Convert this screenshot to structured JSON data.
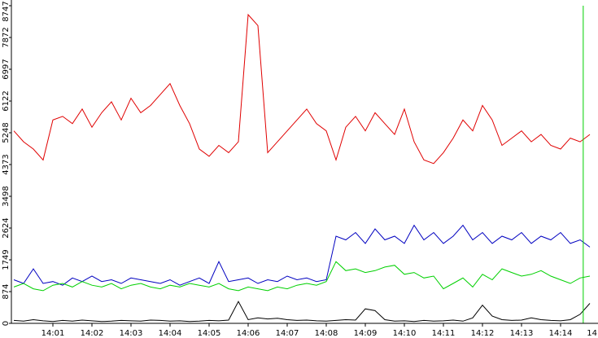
{
  "chart_data": {
    "type": "line",
    "x": [
      0,
      0.25,
      0.5,
      0.75,
      1,
      1.25,
      1.5,
      1.75,
      2,
      2.25,
      2.5,
      2.75,
      3,
      3.25,
      3.5,
      3.75,
      4,
      4.25,
      4.5,
      4.75,
      5,
      5.25,
      5.5,
      5.75,
      6,
      6.25,
      6.5,
      6.75,
      7,
      7.25,
      7.5,
      7.75,
      8,
      8.25,
      8.5,
      8.75,
      9,
      9.25,
      9.5,
      9.75,
      10,
      10.25,
      10.5,
      10.75,
      11,
      11.25,
      11.5,
      11.75,
      12,
      12.25,
      12.5,
      12.75,
      13,
      13.25,
      13.5,
      13.75,
      14,
      14.25,
      14.5,
      14.75
    ],
    "series": [
      {
        "color": "#e00000",
        "values": [
          5300,
          5000,
          4800,
          4500,
          5600,
          5700,
          5500,
          5900,
          5400,
          5800,
          6100,
          5600,
          6200,
          5800,
          6000,
          6300,
          6600,
          6000,
          5500,
          4800,
          4600,
          4900,
          4700,
          5000,
          8500,
          8200,
          4700,
          5000,
          5300,
          5600,
          5900,
          5500,
          5300,
          4500,
          5400,
          5700,
          5300,
          5800,
          5500,
          5200,
          5900,
          5000,
          4500,
          4400,
          4700,
          5100,
          5600,
          5300,
          6000,
          5600,
          4900,
          5100,
          5300,
          5000,
          5200,
          4900,
          4800,
          5100,
          5000,
          5200
        ]
      },
      {
        "color": "#0000c0",
        "values": [
          1200,
          1100,
          1500,
          1100,
          1150,
          1050,
          1250,
          1150,
          1300,
          1150,
          1200,
          1100,
          1250,
          1200,
          1150,
          1100,
          1200,
          1050,
          1150,
          1250,
          1100,
          1700,
          1150,
          1200,
          1250,
          1100,
          1200,
          1150,
          1300,
          1200,
          1250,
          1150,
          1200,
          2400,
          2300,
          2500,
          2200,
          2600,
          2300,
          2400,
          2200,
          2700,
          2300,
          2500,
          2200,
          2400,
          2700,
          2300,
          2500,
          2200,
          2400,
          2300,
          2500,
          2200,
          2400,
          2300,
          2500,
          2200,
          2300,
          2100
        ]
      },
      {
        "color": "#00d000",
        "values": [
          1000,
          1100,
          950,
          900,
          1050,
          1100,
          1000,
          1150,
          1050,
          1000,
          1100,
          950,
          1050,
          1100,
          1000,
          950,
          1050,
          1000,
          1100,
          1050,
          1000,
          1100,
          950,
          900,
          1000,
          950,
          900,
          1000,
          950,
          1050,
          1100,
          1050,
          1150,
          1700,
          1450,
          1500,
          1400,
          1450,
          1550,
          1600,
          1350,
          1400,
          1250,
          1300,
          950,
          1100,
          1250,
          1000,
          1350,
          1200,
          1500,
          1400,
          1300,
          1350,
          1450,
          1300,
          1200,
          1100,
          1250,
          1300
        ]
      },
      {
        "color": "#000000",
        "values": [
          80,
          60,
          100,
          70,
          50,
          80,
          60,
          90,
          70,
          50,
          60,
          80,
          70,
          60,
          90,
          80,
          60,
          70,
          50,
          60,
          80,
          70,
          90,
          600,
          100,
          150,
          120,
          140,
          100,
          80,
          90,
          70,
          60,
          80,
          100,
          90,
          400,
          350,
          100,
          60,
          70,
          50,
          80,
          60,
          70,
          90,
          60,
          150,
          500,
          200,
          100,
          80,
          90,
          150,
          100,
          80,
          70,
          100,
          250,
          550
        ]
      }
    ],
    "marker_x": 14.58,
    "marker_color": "#00d000",
    "xlim": [
      0,
      15
    ],
    "xticks": [
      {
        "value": 1,
        "label": "14:01"
      },
      {
        "value": 2,
        "label": "14:02"
      },
      {
        "value": 3,
        "label": "14:03"
      },
      {
        "value": 4,
        "label": "14:04"
      },
      {
        "value": 5,
        "label": "14:05"
      },
      {
        "value": 6,
        "label": "14:06"
      },
      {
        "value": 7,
        "label": "14:07"
      },
      {
        "value": 8,
        "label": "14:08"
      },
      {
        "value": 9,
        "label": "14:09"
      },
      {
        "value": 10,
        "label": "14:10"
      },
      {
        "value": 11,
        "label": "14:11"
      },
      {
        "value": 12,
        "label": "14:12"
      },
      {
        "value": 13,
        "label": "14:13"
      },
      {
        "value": 14,
        "label": "14:14"
      },
      {
        "value": 15,
        "label": "14"
      }
    ],
    "ylim": [
      0,
      8747
    ],
    "yticks": [
      0,
      874,
      1749,
      2624,
      3498,
      4373,
      5248,
      6122,
      6997,
      7872,
      8747
    ]
  }
}
